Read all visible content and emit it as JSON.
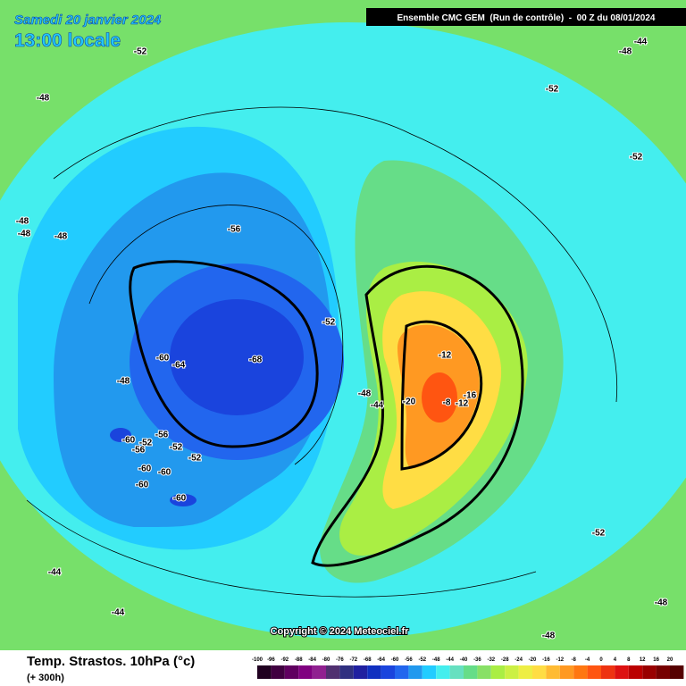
{
  "header": {
    "date": "Samedi 20 janvier 2024",
    "time": "13:00 locale",
    "run": "Ensemble CMC GEM  (Run de contrôle)  -  00 Z du 08/01/2024"
  },
  "copyright": "Copyright © 2024 Meteociel.fr",
  "footer": {
    "title": "Temp. Strastos. 10hPa (°c)",
    "lead": "(+ 300h)"
  },
  "legend": {
    "levels": [
      -100,
      -96,
      -92,
      -88,
      -84,
      -80,
      -76,
      -72,
      -68,
      -64,
      -60,
      -56,
      -52,
      -48,
      -44,
      -40,
      -36,
      -32,
      -28,
      -24,
      -20,
      -16,
      -12,
      -8,
      -4,
      0,
      4,
      8,
      12,
      16,
      20
    ],
    "colors": [
      "#200020",
      "#400040",
      "#600060",
      "#800080",
      "#902090",
      "#503070",
      "#303080",
      "#2020a0",
      "#1030c0",
      "#1a44dd",
      "#2266ee",
      "#2299ee",
      "#22ccff",
      "#44eeee",
      "#66e0c0",
      "#66dd88",
      "#88e066",
      "#aaee44",
      "#ccf044",
      "#eeee44",
      "#ffdd44",
      "#ffbb33",
      "#ff9922",
      "#ff7711",
      "#ff5511",
      "#ee3311",
      "#dd1111",
      "#bb0000",
      "#990000",
      "#770000",
      "#550000"
    ]
  },
  "labels": [
    -52,
    -48,
    -52,
    -44,
    -48,
    -52,
    -48,
    -48,
    -48,
    -56,
    -52,
    -60,
    -64,
    -68,
    -48,
    -48,
    -12,
    -8,
    -12,
    -16,
    -20,
    -60,
    -56,
    -52,
    -56,
    -52,
    -52,
    -60,
    -60,
    -60,
    -60,
    -52,
    -44,
    -44,
    -48,
    -48,
    -44
  ]
}
